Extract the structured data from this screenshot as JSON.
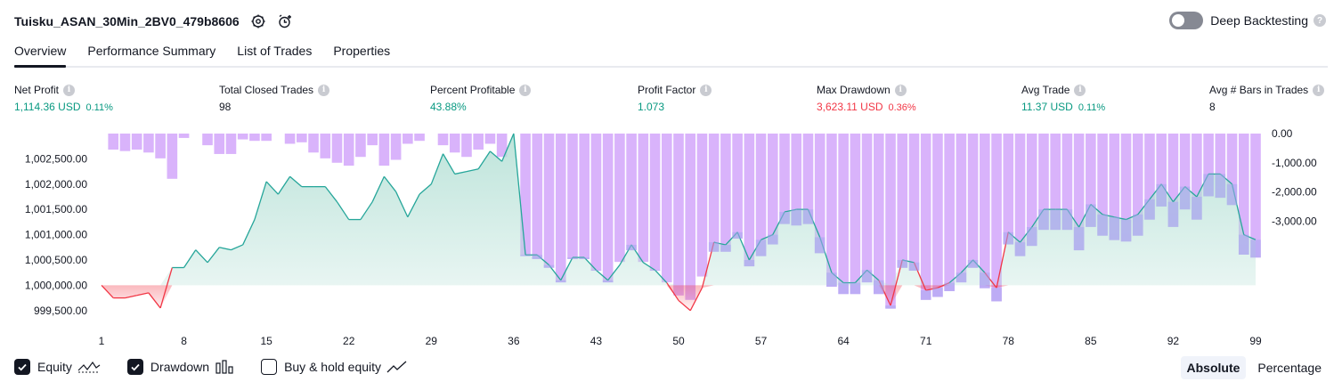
{
  "header": {
    "title": "Tuisku_ASAN_30Min_2BV0_479b8606",
    "deep_backtesting_label": "Deep Backtesting",
    "help_glyph": "?"
  },
  "tabs": [
    {
      "label": "Overview",
      "active": true
    },
    {
      "label": "Performance Summary",
      "active": false
    },
    {
      "label": "List of Trades",
      "active": false
    },
    {
      "label": "Properties",
      "active": false
    }
  ],
  "metrics": [
    {
      "label": "Net Profit",
      "value": "1,114.36 USD",
      "pct": "0.11%",
      "tone": "pos"
    },
    {
      "label": "Total Closed Trades",
      "value": "98",
      "pct": "",
      "tone": "neu"
    },
    {
      "label": "Percent Profitable",
      "value": "43.88%",
      "pct": "",
      "tone": "pos"
    },
    {
      "label": "Profit Factor",
      "value": "1.073",
      "pct": "",
      "tone": "pos"
    },
    {
      "label": "Max Drawdown",
      "value": "3,623.11 USD",
      "pct": "0.36%",
      "tone": "neg"
    },
    {
      "label": "Avg Trade",
      "value": "11.37 USD",
      "pct": "0.11%",
      "tone": "pos"
    },
    {
      "label": "Avg # Bars in Trades",
      "value": "8",
      "pct": "",
      "tone": "neu"
    }
  ],
  "info_glyph": "i",
  "legend": [
    {
      "label": "Equity",
      "checked": true,
      "icon": "equity-line-icon"
    },
    {
      "label": "Drawdown",
      "checked": true,
      "icon": "drawdown-bars-icon"
    },
    {
      "label": "Buy & hold equity",
      "checked": false,
      "icon": "buy-hold-line-icon"
    }
  ],
  "mode": {
    "absolute_label": "Absolute",
    "percentage_label": "Percentage",
    "selected": "Absolute"
  },
  "colors": {
    "equity_line": "#26a69a",
    "equity_fill": "#b2dfd4",
    "equity_negative": "#f23645",
    "drawdown_bar": "#d9b3fb",
    "drawdown_overlap": "#a6a6f0",
    "positive_text": "#089981",
    "negative_text": "#f23645"
  },
  "chart_data": {
    "type": "line",
    "x": [
      1,
      2,
      3,
      4,
      5,
      6,
      7,
      8,
      9,
      10,
      11,
      12,
      13,
      14,
      15,
      16,
      17,
      18,
      19,
      20,
      21,
      22,
      23,
      24,
      25,
      26,
      27,
      28,
      29,
      30,
      31,
      32,
      33,
      34,
      35,
      36,
      37,
      38,
      39,
      40,
      41,
      42,
      43,
      44,
      45,
      46,
      47,
      48,
      49,
      50,
      51,
      52,
      53,
      54,
      55,
      56,
      57,
      58,
      59,
      60,
      61,
      62,
      63,
      64,
      65,
      66,
      67,
      68,
      69,
      70,
      71,
      72,
      73,
      74,
      75,
      76,
      77,
      78,
      79,
      80,
      81,
      82,
      83,
      84,
      85,
      86,
      87,
      88,
      89,
      90,
      91,
      92,
      93,
      94,
      95,
      96,
      97,
      98,
      99
    ],
    "x_ticks": [
      1,
      8,
      15,
      22,
      29,
      36,
      43,
      50,
      57,
      64,
      71,
      78,
      85,
      92,
      99
    ],
    "series": [
      {
        "axis": "left",
        "values": [
          1000000,
          999750,
          999750,
          999800,
          999850,
          999550,
          1000350,
          1000350,
          1000700,
          1000450,
          1000750,
          1000700,
          1000800,
          1001300,
          1002050,
          1001800,
          1002150,
          1001950,
          1001950,
          1001950,
          1001650,
          1001300,
          1001300,
          1001650,
          1002150,
          1001850,
          1001350,
          1001800,
          1002000,
          1002600,
          1002200,
          1002250,
          1002300,
          1002650,
          1002450,
          1003000,
          1000600,
          1000600,
          1000400,
          1000100,
          1000550,
          1000550,
          1000300,
          1000100,
          1000400,
          1000800,
          1000450,
          1000300,
          1000050,
          999700,
          999500,
          999950,
          1000850,
          1000800,
          1001050,
          1000500,
          1000900,
          1001000,
          1001450,
          1001500,
          1001500,
          1000950,
          1000250,
          1000050,
          1000050,
          1000300,
          1000100,
          999600,
          1000500,
          1000450,
          999900,
          999950,
          1000050,
          1000250,
          1000500,
          1000250,
          999950,
          1001050,
          1000850,
          1001150,
          1001500,
          1001500,
          1001500,
          1001150,
          1001600,
          1001400,
          1001350,
          1001300,
          1001400,
          1001700,
          1002000,
          1001650,
          1001950,
          1001750,
          1002200,
          1002200,
          1002000,
          1001000,
          1000900
        ]
      },
      {
        "axis": "right",
        "values": [
          0,
          -550,
          -600,
          -550,
          -650,
          -850,
          -1550,
          -150,
          0,
          -400,
          -700,
          -700,
          -200,
          -250,
          -250,
          0,
          -350,
          -300,
          -650,
          -850,
          -1000,
          -1100,
          -800,
          -400,
          -1100,
          -900,
          -350,
          -250,
          0,
          -400,
          -650,
          -800,
          -550,
          -350,
          -800,
          0,
          -4200,
          -4300,
          -4600,
          -5100,
          -4300,
          -4300,
          -4700,
          -5100,
          -4400,
          -4000,
          -4400,
          -4700,
          -5100,
          -5550,
          -5700,
          -4900,
          -4050,
          -4050,
          -3600,
          -4550,
          -4200,
          -3800,
          -3100,
          -3150,
          -3100,
          -4100,
          -5250,
          -5500,
          -5500,
          -5100,
          -5500,
          -6000,
          -4600,
          -4700,
          -5700,
          -5600,
          -5400,
          -5100,
          -4600,
          -5300,
          -5750,
          -3800,
          -4200,
          -3850,
          -3300,
          -3300,
          -3300,
          -4000,
          -3200,
          -3500,
          -3650,
          -3700,
          -3500,
          -2950,
          -2500,
          -3200,
          -2600,
          -2950,
          -2150,
          -2200,
          -2450,
          -4150,
          -4250
        ]
      }
    ],
    "y_left": {
      "ticks": [
        "1,002,500.00",
        "1,002,000.00",
        "1,001,500.00",
        "1,001,000.00",
        "1,000,500.00",
        "1,000,000.00",
        "999,500.00"
      ],
      "range": [
        999250,
        1003000
      ]
    },
    "y_right": {
      "ticks": [
        "0.00",
        "-1,000.00",
        "-2,000.00",
        "-3,000.00"
      ],
      "range": [
        -6500,
        0
      ]
    },
    "grid": false
  }
}
